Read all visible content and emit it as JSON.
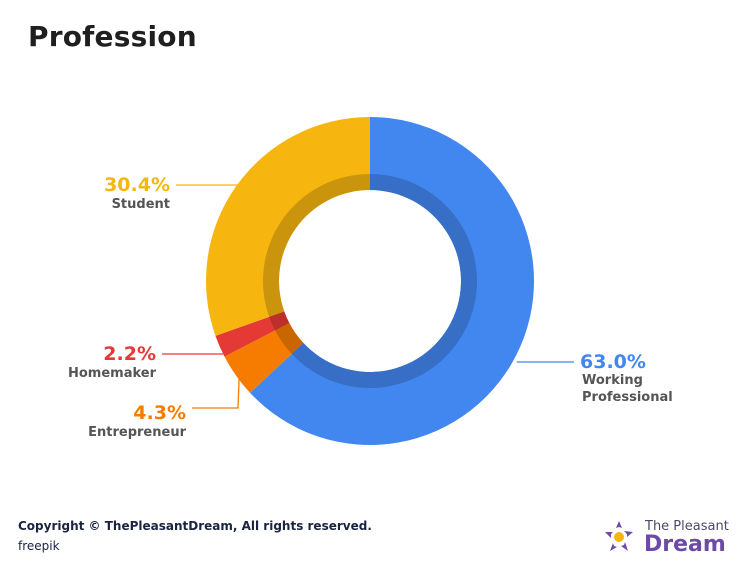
{
  "title": "Profession",
  "chart_data": {
    "type": "pie",
    "style": "donut",
    "title": "Profession",
    "slices": [
      {
        "label_lines": [
          "Working",
          "Professional"
        ],
        "value": 63.0,
        "display": "63.0%",
        "color": "#4287f0"
      },
      {
        "label_lines": [
          "Entrepreneur"
        ],
        "value": 4.3,
        "display": "4.3%",
        "color": "#f57c00"
      },
      {
        "label_lines": [
          "Homemaker"
        ],
        "value": 2.2,
        "display": "2.2%",
        "color": "#e53935"
      },
      {
        "label_lines": [
          "Student"
        ],
        "value": 30.4,
        "display": "30.4%",
        "color": "#f6b60f"
      }
    ]
  },
  "footer": {
    "copyright": "Copyright © ThePleasantDream, All rights reserved.",
    "source": "freepik"
  },
  "brand": {
    "line1": "The Pleasant",
    "line2": "Dream"
  }
}
